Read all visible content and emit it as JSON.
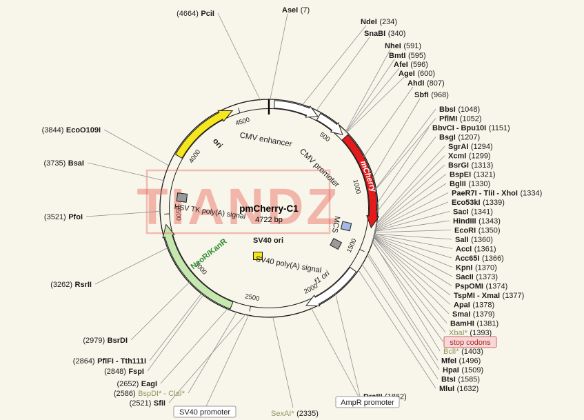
{
  "title": {
    "name": "pmCherry-C1",
    "size": "4722 bp"
  },
  "watermark": "TIANDZ",
  "ticks": [
    "500",
    "1000",
    "1500",
    "2000",
    "2500",
    "3000",
    "3500",
    "4000",
    "4500"
  ],
  "features": [
    {
      "label": "CMV enhancer"
    },
    {
      "label": "CMV promoter"
    },
    {
      "label": "mCherry"
    },
    {
      "label": "MCS"
    },
    {
      "label": "SV40 poly(A) signal"
    },
    {
      "label": "f1 ori"
    },
    {
      "label": "SV40 ori"
    },
    {
      "label": "NeoR/KanR"
    },
    {
      "label": "HSV TK poly(A) signal"
    },
    {
      "label": "ori"
    }
  ],
  "boxed_labels": [
    {
      "label": "SV40 promoter"
    },
    {
      "label": "AmpR promoter"
    },
    {
      "label": "stop codons"
    }
  ],
  "sites": {
    "left": [
      {
        "name": "PciI",
        "pos_display": "(4664)",
        "muted": false
      },
      {
        "name": "EcoO109I",
        "pos_display": "(3844)",
        "muted": false
      },
      {
        "name": "BsaI",
        "pos_display": "(3735)",
        "muted": false
      },
      {
        "name": "PfoI",
        "pos_display": "(3521)",
        "muted": false
      },
      {
        "name": "RsrII",
        "pos_display": "(3262)",
        "muted": false
      },
      {
        "name": "BsrDI",
        "pos_display": "(2979)",
        "muted": false
      },
      {
        "name": "PflFI - Tth111I",
        "pos_display": "(2864)",
        "muted": false
      },
      {
        "name": "FspI",
        "pos_display": "(2848)",
        "muted": false
      },
      {
        "name": "EagI",
        "pos_display": "(2652)",
        "muted": false
      },
      {
        "name": "BspDI* - ClaI*",
        "pos_display": "(2586)",
        "muted": true
      },
      {
        "name": "SfiI",
        "pos_display": "(2521)",
        "muted": false
      }
    ],
    "top": [
      {
        "name": "AseI",
        "pos_display": "(7)",
        "muted": false
      },
      {
        "name": "NdeI",
        "pos_display": "(234)",
        "muted": false
      },
      {
        "name": "SnaBI",
        "pos_display": "(340)",
        "muted": false
      },
      {
        "name": "NheI",
        "pos_display": "(591)",
        "muted": false
      },
      {
        "name": "BmtI",
        "pos_display": "(595)",
        "muted": false
      },
      {
        "name": "AfeI",
        "pos_display": "(596)",
        "muted": false
      },
      {
        "name": "AgeI",
        "pos_display": "(600)",
        "muted": false
      },
      {
        "name": "AhdI",
        "pos_display": "(807)",
        "muted": false
      },
      {
        "name": "SbfI",
        "pos_display": "(968)",
        "muted": false
      }
    ],
    "right": [
      {
        "name": "BbsI",
        "pos_display": "(1048)",
        "muted": false
      },
      {
        "name": "PflMI",
        "pos_display": "(1052)",
        "muted": false
      },
      {
        "name": "BbvCI - Bpu10I",
        "pos_display": "(1151)",
        "muted": false
      },
      {
        "name": "BsgI",
        "pos_display": "(1207)",
        "muted": false
      },
      {
        "name": "SgrAI",
        "pos_display": "(1294)",
        "muted": false
      },
      {
        "name": "XcmI",
        "pos_display": "(1299)",
        "muted": false
      },
      {
        "name": "BsrGI",
        "pos_display": "(1313)",
        "muted": false
      },
      {
        "name": "BspEI",
        "pos_display": "(1321)",
        "muted": false
      },
      {
        "name": "BglII",
        "pos_display": "(1330)",
        "muted": false
      },
      {
        "name": "PaeR7I - TliI - XhoI",
        "pos_display": "(1334)",
        "muted": false
      },
      {
        "name": "Eco53kI",
        "pos_display": "(1339)",
        "muted": false
      },
      {
        "name": "SacI",
        "pos_display": "(1341)",
        "muted": false
      },
      {
        "name": "HindIII",
        "pos_display": "(1343)",
        "muted": false
      },
      {
        "name": "EcoRI",
        "pos_display": "(1350)",
        "muted": false
      },
      {
        "name": "SalI",
        "pos_display": "(1360)",
        "muted": false
      },
      {
        "name": "AccI",
        "pos_display": "(1361)",
        "muted": false
      },
      {
        "name": "Acc65I",
        "pos_display": "(1366)",
        "muted": false
      },
      {
        "name": "KpnI",
        "pos_display": "(1370)",
        "muted": false
      },
      {
        "name": "SacII",
        "pos_display": "(1373)",
        "muted": false
      },
      {
        "name": "PspOMI",
        "pos_display": "(1374)",
        "muted": false
      },
      {
        "name": "TspMI - XmaI",
        "pos_display": "(1377)",
        "muted": false
      },
      {
        "name": "ApaI",
        "pos_display": "(1378)",
        "muted": false
      },
      {
        "name": "SmaI",
        "pos_display": "(1379)",
        "muted": false
      },
      {
        "name": "BamHI",
        "pos_display": "(1381)",
        "muted": false
      },
      {
        "name": "XbaI*",
        "pos_display": "(1393)",
        "muted": true
      },
      {
        "name": "BclI*",
        "pos_display": "(1403)",
        "muted": true
      },
      {
        "name": "MfeI",
        "pos_display": "(1496)",
        "muted": false
      },
      {
        "name": "HpaI",
        "pos_display": "(1509)",
        "muted": false
      },
      {
        "name": "BtsI",
        "pos_display": "(1585)",
        "muted": false
      },
      {
        "name": "MluI",
        "pos_display": "(1632)",
        "muted": false
      },
      {
        "name": "DraIII",
        "pos_display": "(1862)",
        "muted": false
      }
    ],
    "bottom": [
      {
        "name": "SexAI*",
        "pos_display": "(2335)",
        "muted": true
      }
    ]
  },
  "colors": {
    "mcherry_red": "#e31b1c",
    "neor_green": "#c5e8ae",
    "neor_text": "#2f8f2f",
    "ori_yellow": "#f5e61e",
    "mcs_blue": "#a3b9e6",
    "gray_box": "#9a9a9a",
    "muted_label": "#90935f",
    "stop_red": "#b22222",
    "background": "#f8f5ea"
  }
}
